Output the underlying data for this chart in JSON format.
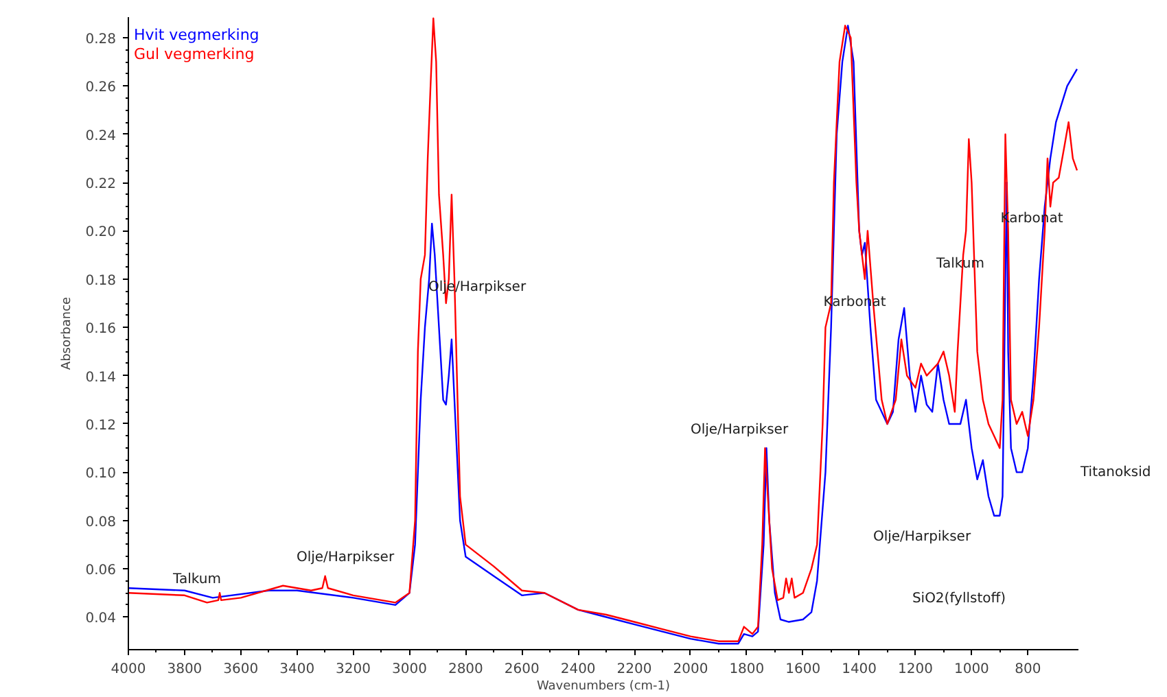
{
  "chart_data": {
    "type": "line",
    "xlabel": "Wavenumbers (cm-1)",
    "ylabel": "Absorbance",
    "xlim": [
      4000,
      620
    ],
    "ylim": [
      0.0265,
      0.2885
    ],
    "xticks": [
      4000,
      3800,
      3600,
      3400,
      3200,
      3000,
      2800,
      2600,
      2400,
      2200,
      2000,
      1800,
      1600,
      1400,
      1200,
      1000,
      800
    ],
    "yticks": [
      {
        "value": 0.04,
        "label": "0.04"
      },
      {
        "value": 0.06,
        "label": "0.06"
      },
      {
        "value": 0.08,
        "label": "0.08"
      },
      {
        "value": 0.1,
        "label": "0.10"
      },
      {
        "value": 0.12,
        "label": "0.12"
      },
      {
        "value": 0.14,
        "label": "0.14"
      },
      {
        "value": 0.16,
        "label": "0.16"
      },
      {
        "value": 0.18,
        "label": "0.18"
      },
      {
        "value": 0.2,
        "label": "0.20"
      },
      {
        "value": 0.22,
        "label": "0.22"
      },
      {
        "value": 0.24,
        "label": "0.24"
      },
      {
        "value": 0.26,
        "label": "0.26"
      },
      {
        "value": 0.28,
        "label": "0.28"
      }
    ],
    "grid": false,
    "legend": "top left",
    "line_style": "solid",
    "marker": "none",
    "series": [
      {
        "name": "Hvit vegmerking",
        "color": "#0000ff",
        "x": [
          4000,
          3800,
          3700,
          3500,
          3400,
          3200,
          3100,
          3050,
          3000,
          2980,
          2960,
          2945,
          2930,
          2920,
          2910,
          2895,
          2880,
          2870,
          2860,
          2850,
          2840,
          2820,
          2800,
          2700,
          2600,
          2520,
          2400,
          2300,
          2200,
          2100,
          2000,
          1900,
          1830,
          1810,
          1780,
          1760,
          1740,
          1730,
          1720,
          1700,
          1680,
          1650,
          1600,
          1570,
          1550,
          1520,
          1500,
          1480,
          1460,
          1440,
          1420,
          1400,
          1390,
          1380,
          1360,
          1340,
          1300,
          1280,
          1260,
          1240,
          1220,
          1200,
          1180,
          1160,
          1140,
          1120,
          1100,
          1080,
          1040,
          1020,
          1000,
          980,
          960,
          940,
          920,
          900,
          890,
          880,
          875,
          870,
          860,
          840,
          820,
          800,
          780,
          760,
          740,
          720,
          700,
          660,
          625
        ],
        "values": [
          0.052,
          0.051,
          0.048,
          0.051,
          0.051,
          0.048,
          0.046,
          0.045,
          0.05,
          0.07,
          0.13,
          0.16,
          0.18,
          0.203,
          0.19,
          0.16,
          0.13,
          0.128,
          0.14,
          0.155,
          0.13,
          0.08,
          0.065,
          0.057,
          0.049,
          0.05,
          0.043,
          0.04,
          0.037,
          0.034,
          0.031,
          0.029,
          0.029,
          0.033,
          0.032,
          0.034,
          0.07,
          0.11,
          0.08,
          0.05,
          0.039,
          0.038,
          0.039,
          0.042,
          0.055,
          0.1,
          0.16,
          0.24,
          0.27,
          0.285,
          0.27,
          0.2,
          0.19,
          0.195,
          0.16,
          0.13,
          0.12,
          0.125,
          0.155,
          0.168,
          0.14,
          0.125,
          0.14,
          0.128,
          0.125,
          0.145,
          0.13,
          0.12,
          0.12,
          0.13,
          0.11,
          0.097,
          0.105,
          0.09,
          0.082,
          0.082,
          0.09,
          0.18,
          0.22,
          0.15,
          0.11,
          0.1,
          0.1,
          0.11,
          0.14,
          0.18,
          0.21,
          0.23,
          0.245,
          0.26,
          0.267
        ]
      },
      {
        "name": "Gul vegmerking",
        "color": "#ff0000",
        "x": [
          4000,
          3800,
          3720,
          3680,
          3675,
          3670,
          3600,
          3450,
          3350,
          3310,
          3300,
          3290,
          3200,
          3100,
          3050,
          3000,
          2980,
          2970,
          2960,
          2945,
          2935,
          2925,
          2915,
          2905,
          2895,
          2880,
          2870,
          2860,
          2850,
          2840,
          2820,
          2800,
          2700,
          2600,
          2520,
          2400,
          2300,
          2200,
          2100,
          2000,
          1900,
          1830,
          1810,
          1780,
          1760,
          1745,
          1735,
          1725,
          1710,
          1690,
          1670,
          1660,
          1650,
          1640,
          1630,
          1600,
          1570,
          1550,
          1530,
          1520,
          1500,
          1490,
          1470,
          1450,
          1430,
          1410,
          1400,
          1380,
          1370,
          1350,
          1320,
          1300,
          1270,
          1250,
          1230,
          1200,
          1180,
          1160,
          1120,
          1100,
          1080,
          1060,
          1050,
          1030,
          1020,
          1010,
          1000,
          980,
          960,
          940,
          920,
          900,
          890,
          880,
          870,
          860,
          840,
          820,
          800,
          780,
          760,
          740,
          730,
          720,
          710,
          690,
          670,
          655,
          640,
          625
        ],
        "values": [
          0.05,
          0.049,
          0.046,
          0.047,
          0.05,
          0.047,
          0.048,
          0.053,
          0.051,
          0.052,
          0.057,
          0.052,
          0.049,
          0.047,
          0.046,
          0.05,
          0.08,
          0.15,
          0.18,
          0.19,
          0.23,
          0.26,
          0.288,
          0.27,
          0.215,
          0.19,
          0.17,
          0.18,
          0.215,
          0.18,
          0.09,
          0.07,
          0.061,
          0.051,
          0.05,
          0.043,
          0.041,
          0.038,
          0.035,
          0.032,
          0.03,
          0.03,
          0.036,
          0.033,
          0.036,
          0.07,
          0.11,
          0.09,
          0.06,
          0.047,
          0.048,
          0.056,
          0.05,
          0.056,
          0.048,
          0.05,
          0.06,
          0.07,
          0.12,
          0.16,
          0.17,
          0.22,
          0.27,
          0.285,
          0.28,
          0.22,
          0.2,
          0.18,
          0.2,
          0.17,
          0.13,
          0.12,
          0.13,
          0.155,
          0.14,
          0.135,
          0.145,
          0.14,
          0.145,
          0.15,
          0.14,
          0.125,
          0.15,
          0.19,
          0.2,
          0.238,
          0.22,
          0.15,
          0.13,
          0.12,
          0.115,
          0.11,
          0.13,
          0.24,
          0.2,
          0.13,
          0.12,
          0.125,
          0.115,
          0.13,
          0.16,
          0.2,
          0.23,
          0.21,
          0.22,
          0.222,
          0.235,
          0.245,
          0.23,
          0.225
        ]
      }
    ],
    "annotations": [
      "Talkum",
      "Olje/Harpikser",
      "Olje/Harpikser",
      "Olje/Harpikser",
      "Karbonat",
      "Talkum",
      "Karbonat",
      "Olje/Harpikser",
      "SiO2(fyllstoff)",
      "Titanoksid"
    ]
  }
}
